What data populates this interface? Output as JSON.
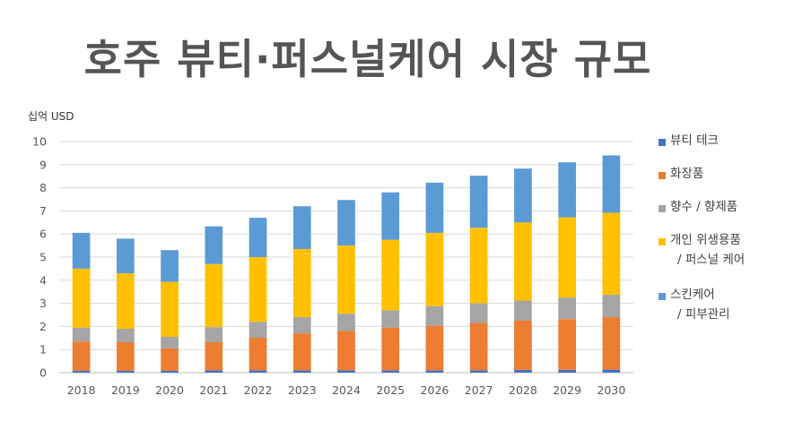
{
  "title": "호주 뷰티·퍼스널케어 시장 규모",
  "chart_data": {
    "type": "bar",
    "stacked": true,
    "unit_label": "십억 USD",
    "categories": [
      "2018",
      "2019",
      "2020",
      "2021",
      "2022",
      "2023",
      "2024",
      "2025",
      "2026",
      "2027",
      "2028",
      "2029",
      "2030"
    ],
    "ylim": [
      0,
      10
    ],
    "yticks": [
      0,
      1,
      2,
      3,
      4,
      5,
      6,
      7,
      8,
      9,
      10
    ],
    "grid": true,
    "legend_position": "right",
    "series": [
      {
        "name": "뷰티 테크",
        "color": "#4472C4",
        "values": [
          0.08,
          0.08,
          0.08,
          0.1,
          0.1,
          0.1,
          0.1,
          0.1,
          0.1,
          0.1,
          0.12,
          0.12,
          0.13
        ]
      },
      {
        "name": "화장품",
        "color": "#ED7D31",
        "values": [
          1.27,
          1.24,
          0.97,
          1.22,
          1.41,
          1.6,
          1.7,
          1.85,
          1.93,
          2.05,
          2.13,
          2.2,
          2.27
        ]
      },
      {
        "name": "향수 / 향제품",
        "color": "#A5A5A5",
        "values": [
          0.6,
          0.58,
          0.5,
          0.65,
          0.69,
          0.7,
          0.75,
          0.75,
          0.85,
          0.85,
          0.87,
          0.93,
          0.97
        ]
      },
      {
        "name": "개인 위생용품 / 퍼스널 케어",
        "color": "#FFC000",
        "values": [
          2.55,
          2.4,
          2.38,
          2.73,
          2.8,
          2.95,
          2.95,
          3.05,
          3.17,
          3.27,
          3.38,
          3.47,
          3.55
        ]
      },
      {
        "name": "스킨케어 / 피부관리",
        "color": "#5B9BD5",
        "values": [
          1.55,
          1.5,
          1.37,
          1.63,
          1.7,
          1.85,
          1.97,
          2.05,
          2.17,
          2.25,
          2.33,
          2.38,
          2.48
        ]
      }
    ]
  },
  "legend": [
    {
      "line1": "뷰티 테크",
      "line2": ""
    },
    {
      "line1": "화장품",
      "line2": ""
    },
    {
      "line1": "향수 / 향제품",
      "line2": ""
    },
    {
      "line1": "개인 위생용품",
      "line2": "/ 퍼스널 케어"
    },
    {
      "line1": "스킨케어",
      "line2": "/ 피부관리"
    }
  ]
}
